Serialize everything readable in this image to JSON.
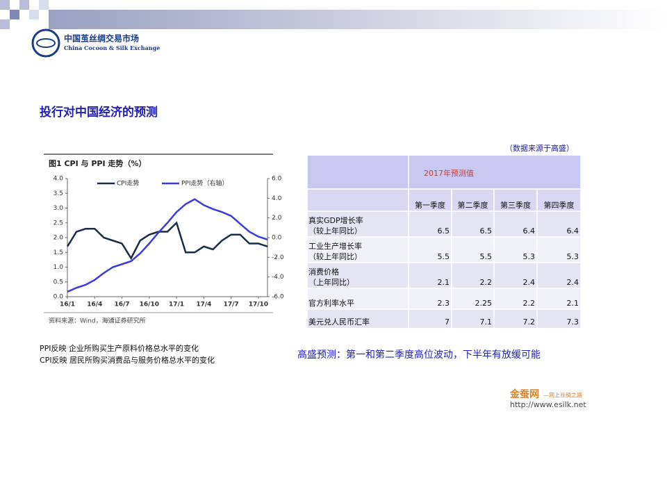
{
  "header": {
    "logo_cn": "中国茧丝绸交易市场",
    "logo_en": "China Cocoon & Silk Exchange"
  },
  "title": "投行对中国经济的预测",
  "chart_data": {
    "type": "line",
    "title": "图1  CPI 与 PPI 走势（%）",
    "source": "资料来源：Wind，海通证券研究所",
    "categories": [
      "16/1",
      null,
      null,
      "16/4",
      null,
      null,
      "16/7",
      null,
      null,
      "16/10",
      null,
      null,
      "17/1",
      null,
      null,
      "17/4",
      null,
      null,
      "17/7",
      null,
      null,
      "17/10",
      null
    ],
    "series": [
      {
        "name": "CPI走势",
        "color": "#1a2a4a",
        "values": [
          1.7,
          2.2,
          2.3,
          2.3,
          2.0,
          1.9,
          1.8,
          1.3,
          1.9,
          2.1,
          2.2,
          2.2,
          2.5,
          1.5,
          1.5,
          1.7,
          1.6,
          1.9,
          2.1,
          2.1,
          1.8,
          1.8,
          1.7
        ]
      },
      {
        "name": "PPI走势（右轴）",
        "color": "#3a3ae0",
        "axis": "y2",
        "values": [
          -5.5,
          -5.1,
          -4.8,
          -4.3,
          -3.6,
          -3.0,
          -2.7,
          -2.4,
          -1.6,
          -0.6,
          0.5,
          1.5,
          2.6,
          3.4,
          3.9,
          3.3,
          2.9,
          2.6,
          2.2,
          1.4,
          0.6,
          0.1,
          -0.2
        ]
      }
    ],
    "ylim": [
      0,
      4
    ],
    "yticks": [
      {
        "value": 0,
        "label": "0.0"
      },
      0.5,
      {
        "value": 1,
        "label": "1.0"
      },
      1.5,
      {
        "value": 2,
        "label": "2.0"
      },
      2.5,
      {
        "value": 3,
        "label": "3.0"
      },
      3.5,
      {
        "value": 4,
        "label": "4.0"
      }
    ],
    "y2lim": [
      -6,
      6
    ],
    "y2ticks": [
      {
        "value": -6,
        "label": "-6.0"
      },
      {
        "value": -4,
        "label": "-4.0"
      },
      {
        "value": -2,
        "label": "-2.0"
      },
      {
        "value": 0,
        "label": "0.0"
      },
      {
        "value": 2,
        "label": "2.0"
      },
      {
        "value": 4,
        "label": "4.0"
      },
      {
        "value": 6,
        "label": "6.0"
      }
    ]
  },
  "notes": [
    "PPI反映 企业所购买生产原料价格总水平的变化",
    "CPI反映 居民所购买消费品与服务价格总水平的变化"
  ],
  "table": {
    "source": "（数据来源于高盛）",
    "header": "2017年预测值",
    "columns": [
      "第一季度",
      "第二季度",
      "第三季度",
      "第四季度"
    ],
    "rows": [
      {
        "label": [
          "真实GDP增长率",
          "（较上年同比）"
        ],
        "values": [
          6.5,
          6.5,
          6.4,
          6.4
        ]
      },
      {
        "label": [
          "工业生产增长率",
          "（较上年同比）"
        ],
        "values": [
          5.5,
          5.5,
          5.3,
          5.3
        ]
      },
      {
        "label": [
          "消费价格",
          "（上年同比）"
        ],
        "values": [
          2.1,
          2.2,
          2.4,
          2.4
        ]
      },
      {
        "label": [
          "官方利率水平"
        ],
        "values": [
          2.3,
          2.25,
          2.2,
          2.1
        ]
      },
      {
        "label": [
          "美元兑人民币汇率"
        ],
        "values": [
          7,
          7.1,
          7.2,
          7.3
        ]
      }
    ]
  },
  "conclusion": "高盛预测：第一和第二季度高位波动，下半年有放缓可能",
  "footer": {
    "brand": "金蚕网",
    "tagline": "—网上丝绸之路",
    "url": "http://www.esilk.net"
  }
}
